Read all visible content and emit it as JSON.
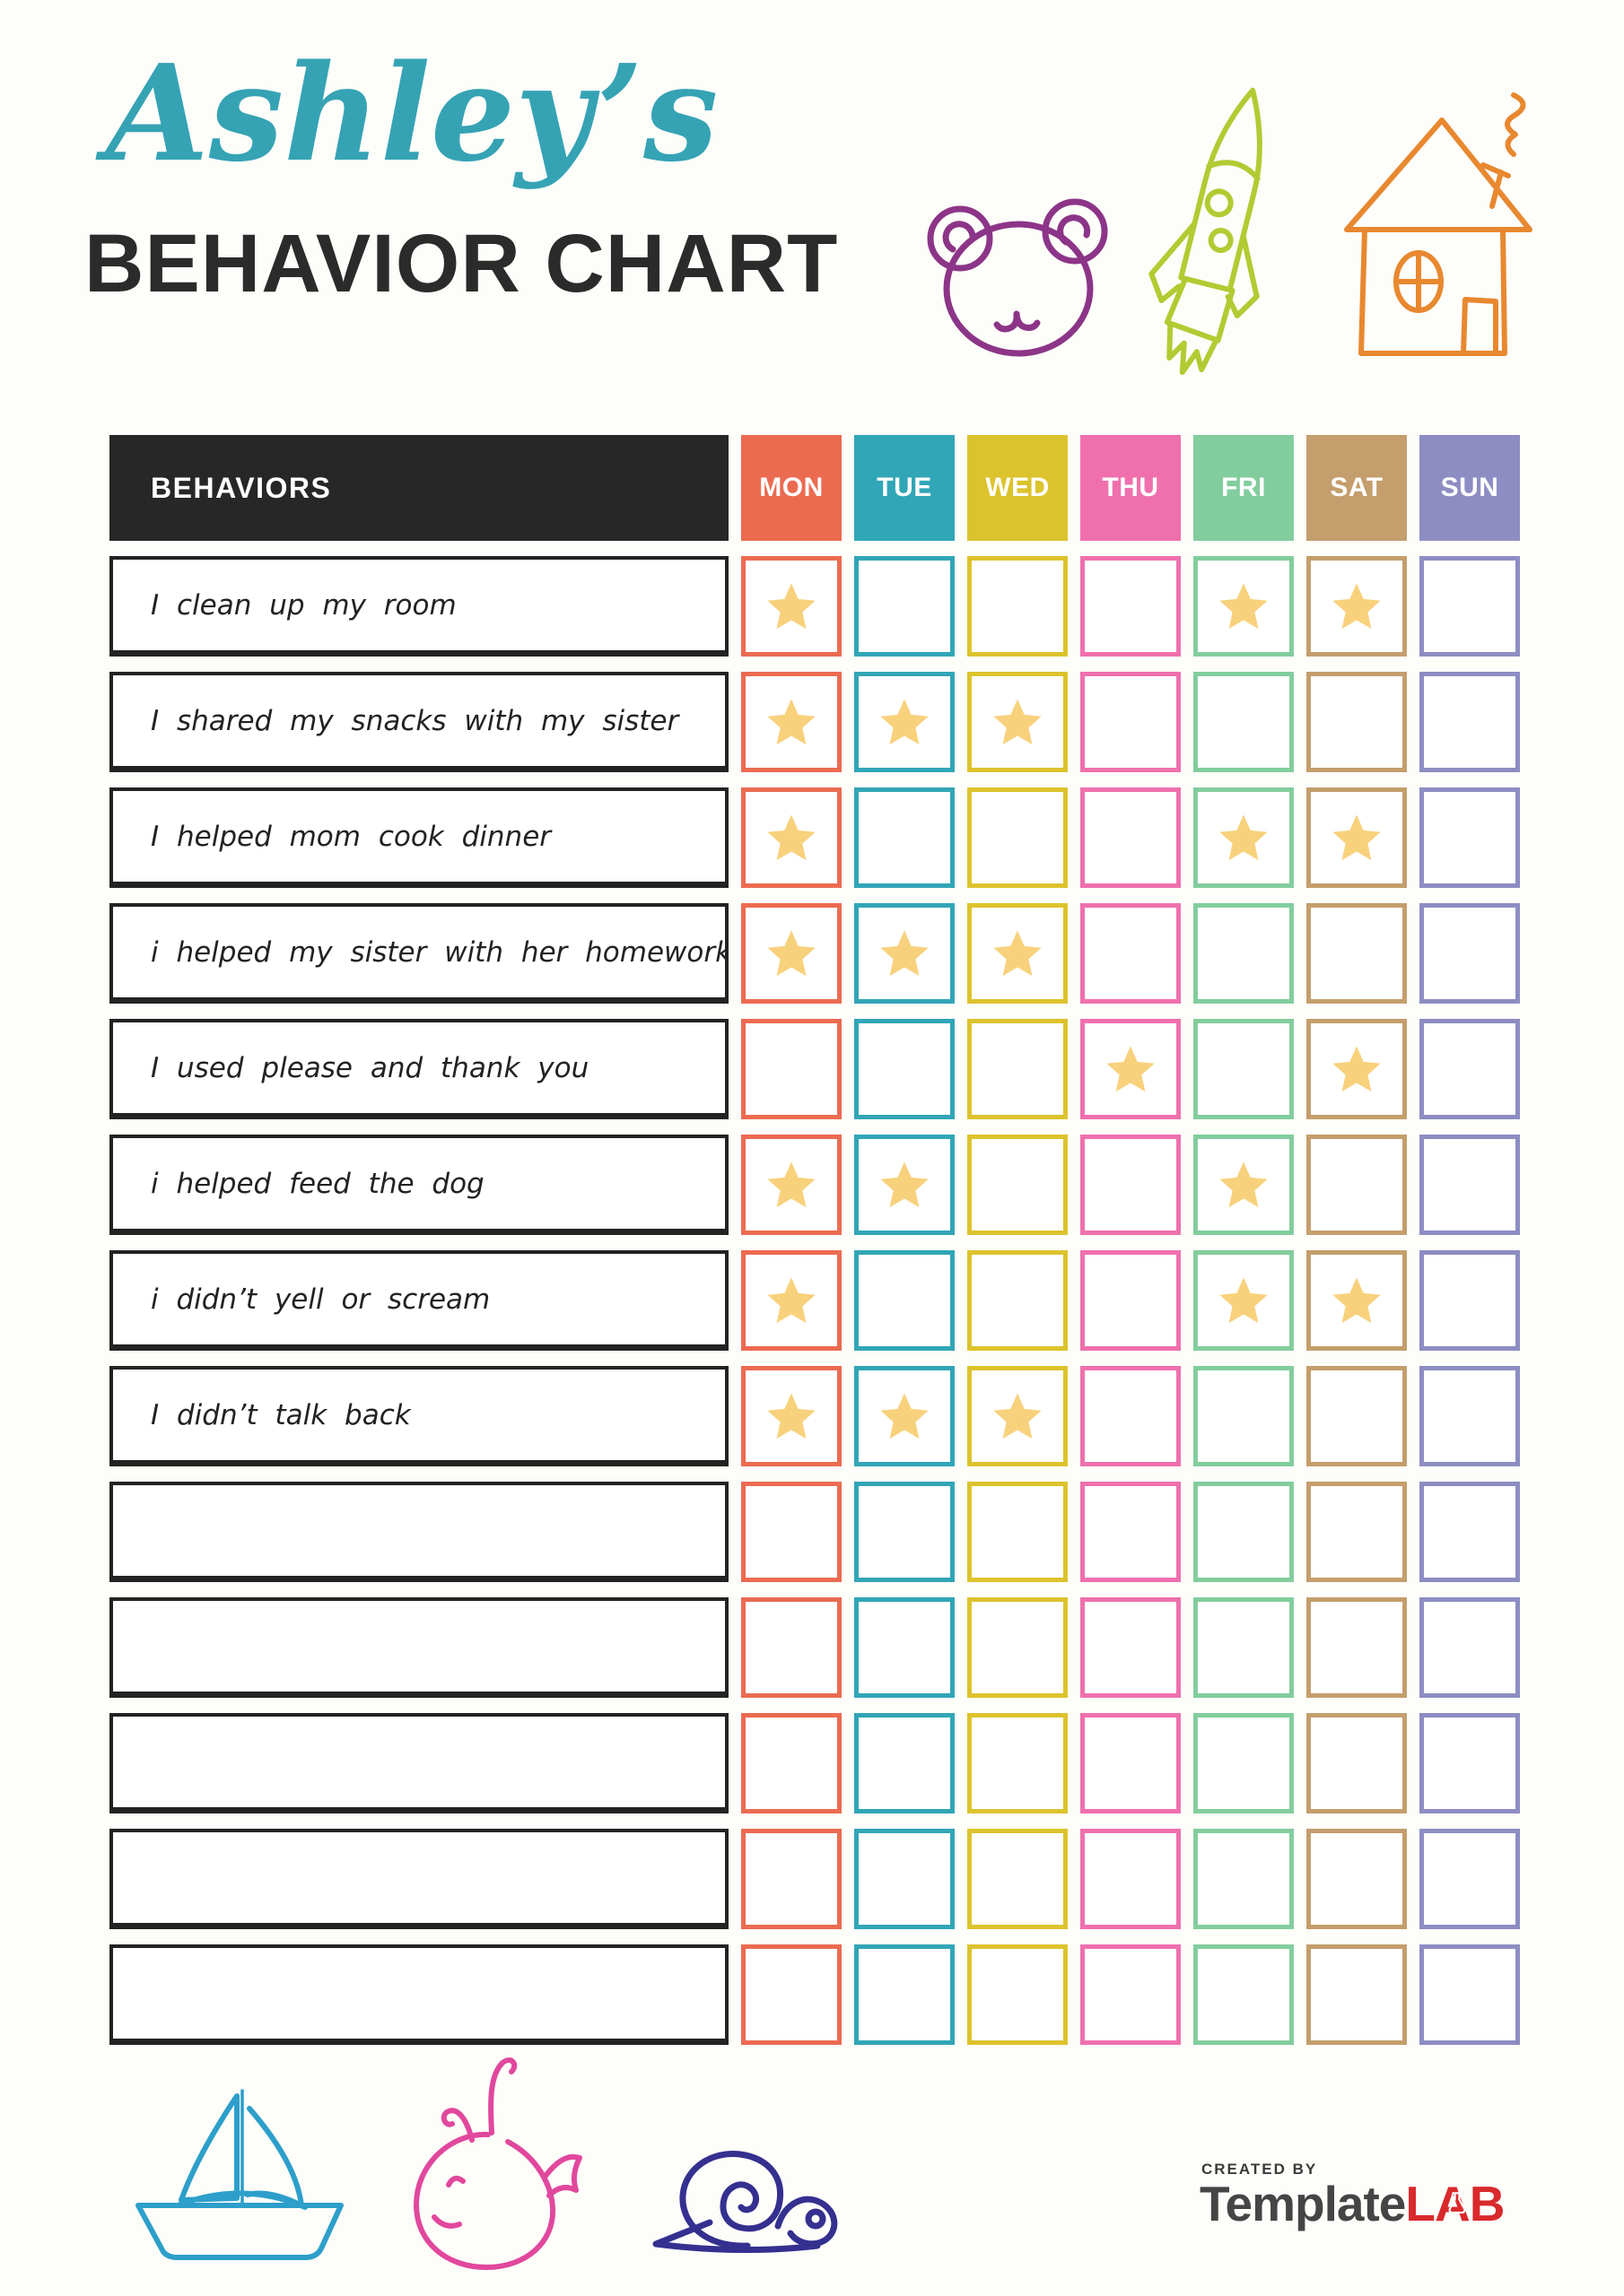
{
  "header": {
    "name": "Ashley’s",
    "title": "BEHAVIOR CHART"
  },
  "table": {
    "behaviors_header": "BEHAVIORS",
    "days": [
      {
        "label": "MON",
        "color": "#eb6b51"
      },
      {
        "label": "TUE",
        "color": "#31a6b6"
      },
      {
        "label": "WED",
        "color": "#dcc32d"
      },
      {
        "label": "THU",
        "color": "#ef70ad"
      },
      {
        "label": "FRI",
        "color": "#82cd9d"
      },
      {
        "label": "SAT",
        "color": "#c49e6c"
      },
      {
        "label": "SUN",
        "color": "#8d8dc3"
      }
    ],
    "rows": [
      {
        "behavior": "I clean up my room",
        "stars": [
          "MON",
          "FRI",
          "SAT"
        ]
      },
      {
        "behavior": "I shared my snacks with my sister",
        "stars": [
          "MON",
          "TUE",
          "WED"
        ]
      },
      {
        "behavior": "I helped mom cook dinner",
        "stars": [
          "MON",
          "FRI",
          "SAT"
        ]
      },
      {
        "behavior": "i helped my sister with her homework",
        "stars": [
          "MON",
          "TUE",
          "WED"
        ]
      },
      {
        "behavior": "I used please and thank you",
        "stars": [
          "THU",
          "SAT"
        ]
      },
      {
        "behavior": "i helped feed the dog",
        "stars": [
          "MON",
          "TUE",
          "FRI"
        ]
      },
      {
        "behavior": "i didn’t yell or scream",
        "stars": [
          "MON",
          "FRI",
          "SAT"
        ]
      },
      {
        "behavior": "I didn’t talk back",
        "stars": [
          "MON",
          "TUE",
          "WED"
        ]
      },
      {
        "behavior": "",
        "stars": []
      },
      {
        "behavior": "",
        "stars": []
      },
      {
        "behavior": "",
        "stars": []
      },
      {
        "behavior": "",
        "stars": []
      },
      {
        "behavior": "",
        "stars": []
      }
    ]
  },
  "footer": {
    "created_by": "CREATED BY",
    "brand": {
      "primary": "Template",
      "accent": "LAB"
    }
  },
  "colors": {
    "page_bg": "#fdfdfa",
    "header_bg": "#272727",
    "star": "#f8d17c",
    "script_teal": "#35a3b4",
    "heading": "#2b2b2b",
    "bear": "#8c3588",
    "rocket": "#b2cb33",
    "house": "#e8882f",
    "boat": "#2d9fca",
    "whale": "#e1489d",
    "snail": "#34308f",
    "logo_gray": "#454545",
    "logo_red": "#d9292b"
  }
}
